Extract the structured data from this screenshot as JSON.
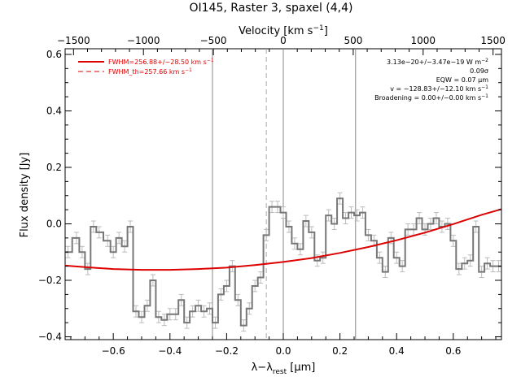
{
  "chart_data": {
    "type": "line",
    "title": "OI145, Raster 3, spaxel (4,4)",
    "xlabel": "λ−λ",
    "xlabel_sub": "rest",
    "xlabel_unit": " [μm]",
    "ylabel": "Flux density [Jy]",
    "top_axis": {
      "label": "Velocity [km s",
      "label_sup": "−1",
      "label_end": "]",
      "range": [
        -1560,
        1560
      ],
      "ticks": [
        -1500,
        -1000,
        -500,
        0,
        500,
        1000,
        1500
      ],
      "tick_labels": [
        "−1500",
        "−1000",
        "−500",
        "0",
        "500",
        "1000",
        "1500"
      ]
    },
    "xlim": [
      -0.77,
      0.77
    ],
    "ylim": [
      -0.41,
      0.62
    ],
    "x_ticks": [
      -0.6,
      -0.4,
      -0.2,
      0.0,
      0.2,
      0.4,
      0.6
    ],
    "x_tick_labels": [
      "−0.6",
      "−0.4",
      "−0.2",
      "0.0",
      "0.2",
      "0.4",
      "0.6"
    ],
    "y_ticks": [
      -0.4,
      -0.2,
      0.0,
      0.2,
      0.4,
      0.6
    ],
    "y_tick_labels": [
      "−0.4",
      "−0.2",
      "0.0",
      "0.2",
      "0.4",
      "0.6"
    ],
    "grid": false,
    "legend": {
      "position": "top-left",
      "entries": [
        {
          "name": "FWHM=256.88+/−28.50 km s",
          "sup": "−1",
          "style": "solid",
          "color": "#dd0000"
        },
        {
          "name": "FWHM_th=257.66 km s",
          "sup": "−1",
          "style": "dashed",
          "color": "#dd0000"
        }
      ]
    },
    "annotations": [
      {
        "text": "3.13e−20+/−3.47e−19 W m",
        "sup": "−2"
      },
      {
        "text": "0.09σ",
        "sup": ""
      },
      {
        "text": "EQW = 0.07 μm",
        "sup": ""
      },
      {
        "text": "v = −128.83+/−12.10 km s",
        "sup": "−1"
      },
      {
        "text": "Broadening = 0.00+/−0.00 km s",
        "sup": "−1"
      }
    ],
    "vertical_lines": [
      {
        "x": -0.25,
        "style": "solid",
        "color": "#888888"
      },
      {
        "x": -0.06,
        "style": "dashed",
        "color": "#aaaaaa"
      },
      {
        "x": 0.0,
        "style": "solid",
        "color": "#888888"
      },
      {
        "x": 0.255,
        "style": "solid",
        "color": "#888888"
      }
    ],
    "series": [
      {
        "style": "steps",
        "color": "#777777",
        "x": [
          -0.76,
          -0.73,
          -0.71,
          -0.69,
          -0.67,
          -0.65,
          -0.62,
          -0.6,
          -0.58,
          -0.56,
          -0.54,
          -0.52,
          -0.5,
          -0.48,
          -0.46,
          -0.44,
          -0.42,
          -0.4,
          -0.38,
          -0.36,
          -0.34,
          -0.32,
          -0.3,
          -0.28,
          -0.26,
          -0.24,
          -0.22,
          -0.2,
          -0.18,
          -0.16,
          -0.14,
          -0.12,
          -0.1,
          -0.08,
          -0.06,
          -0.04,
          -0.02,
          0.0,
          0.02,
          0.04,
          0.06,
          0.08,
          0.1,
          0.12,
          0.14,
          0.16,
          0.18,
          0.2,
          0.22,
          0.24,
          0.26,
          0.28,
          0.3,
          0.32,
          0.34,
          0.36,
          0.38,
          0.4,
          0.42,
          0.44,
          0.46,
          0.48,
          0.5,
          0.52,
          0.54,
          0.56,
          0.58,
          0.6,
          0.62,
          0.64,
          0.66,
          0.68,
          0.7,
          0.72,
          0.74,
          0.76
        ],
        "y": [
          -0.1,
          -0.05,
          -0.1,
          -0.16,
          -0.01,
          -0.03,
          -0.06,
          -0.1,
          -0.05,
          -0.08,
          -0.01,
          -0.31,
          -0.33,
          -0.29,
          -0.2,
          -0.33,
          -0.34,
          -0.32,
          -0.32,
          -0.27,
          -0.35,
          -0.31,
          -0.29,
          -0.31,
          -0.3,
          -0.35,
          -0.25,
          -0.22,
          -0.15,
          -0.27,
          -0.36,
          -0.3,
          -0.22,
          -0.19,
          -0.04,
          0.06,
          0.06,
          0.04,
          -0.01,
          -0.07,
          -0.09,
          0.01,
          -0.03,
          -0.13,
          -0.12,
          0.03,
          0.0,
          0.09,
          0.02,
          0.04,
          0.03,
          0.04,
          -0.04,
          -0.06,
          -0.12,
          -0.17,
          -0.05,
          -0.12,
          -0.15,
          -0.02,
          -0.02,
          0.02,
          -0.02,
          0.0,
          0.02,
          -0.01,
          0.0,
          -0.06,
          -0.16,
          -0.14,
          -0.13,
          -0.01,
          -0.17,
          -0.14,
          -0.15,
          -0.15
        ],
        "yerr": 0.02
      },
      {
        "style": "smooth",
        "color": "#dd0000",
        "x": [
          -0.77,
          -0.7,
          -0.6,
          -0.5,
          -0.4,
          -0.3,
          -0.2,
          -0.1,
          0.0,
          0.1,
          0.2,
          0.3,
          0.4,
          0.5,
          0.6,
          0.7,
          0.77
        ],
        "y": [
          -0.148,
          -0.153,
          -0.16,
          -0.163,
          -0.163,
          -0.16,
          -0.155,
          -0.146,
          -0.135,
          -0.121,
          -0.103,
          -0.082,
          -0.058,
          -0.031,
          -0.001,
          0.032,
          0.052
        ]
      }
    ]
  }
}
